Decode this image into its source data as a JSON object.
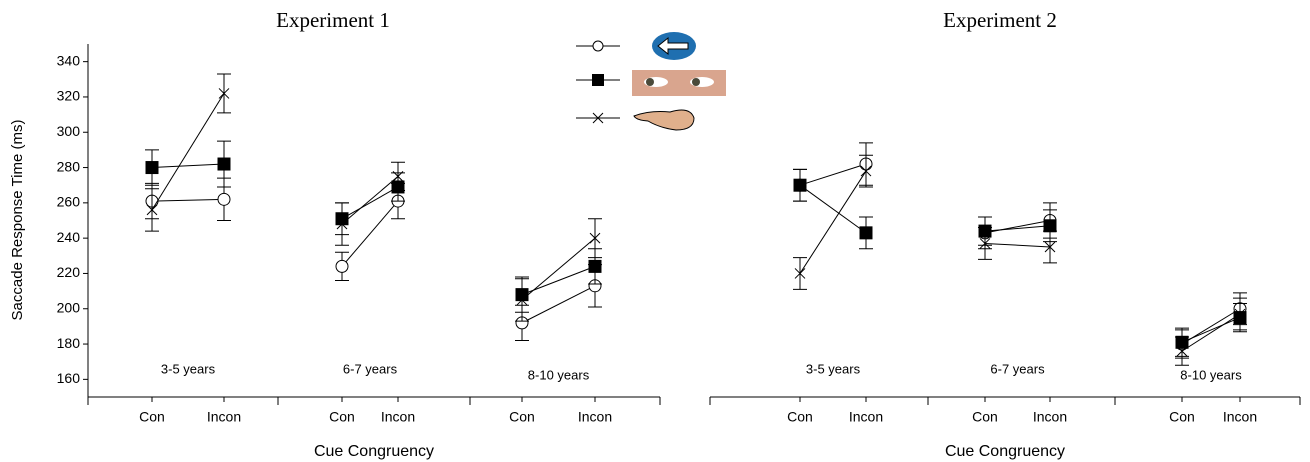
{
  "chart_data": [
    {
      "type": "line",
      "title": "Experiment 1",
      "ylabel": "Saccade Response Time (ms)",
      "xlabel": "Cue Congruency",
      "categories": [
        "Con",
        "Incon",
        "Con",
        "Incon",
        "Con",
        "Incon"
      ],
      "groups": [
        "3-5 years",
        "6-7 years",
        "8-10 years"
      ],
      "series": [
        {
          "color": "#000000",
          "marker": "circle",
          "values": [
            261,
            262,
            224,
            261,
            192,
            213
          ],
          "errors": [
            10,
            12,
            8,
            10,
            10,
            12
          ]
        },
        {
          "color": "#000000",
          "marker": "square",
          "values": [
            280,
            282,
            251,
            269,
            208,
            224
          ],
          "errors": [
            10,
            13,
            9,
            8,
            10,
            10
          ]
        },
        {
          "color": "#000000",
          "marker": "x",
          "values": [
            256,
            322,
            248,
            275,
            205,
            240
          ],
          "errors": [
            12,
            11,
            12,
            8,
            12,
            11
          ]
        }
      ],
      "ylim": [
        150,
        350
      ],
      "yticks": [
        160,
        180,
        200,
        220,
        240,
        260,
        280,
        300,
        320,
        340
      ]
    },
    {
      "type": "line",
      "title": "Experiment 2",
      "xlabel": "Cue Congruency",
      "categories": [
        "Con",
        "Incon",
        "Con",
        "Incon",
        "Con",
        "Incon"
      ],
      "groups": [
        "3-5 years",
        "6-7 years",
        "8-10 years"
      ],
      "series": [
        {
          "color": "#000000",
          "marker": "circle",
          "values": [
            270,
            282,
            243,
            250,
            180,
            200
          ],
          "errors": [
            9,
            12,
            9,
            10,
            8,
            9
          ]
        },
        {
          "color": "#000000",
          "marker": "square",
          "values": [
            270,
            243,
            244,
            247,
            181,
            195
          ],
          "errors": [
            9,
            9,
            8,
            9,
            8,
            8
          ]
        },
        {
          "color": "#000000",
          "marker": "x",
          "values": [
            220,
            278,
            237,
            235,
            176,
            197
          ],
          "errors": [
            9,
            9,
            9,
            9,
            8,
            9
          ]
        }
      ],
      "ylim": [
        150,
        350
      ]
    }
  ]
}
